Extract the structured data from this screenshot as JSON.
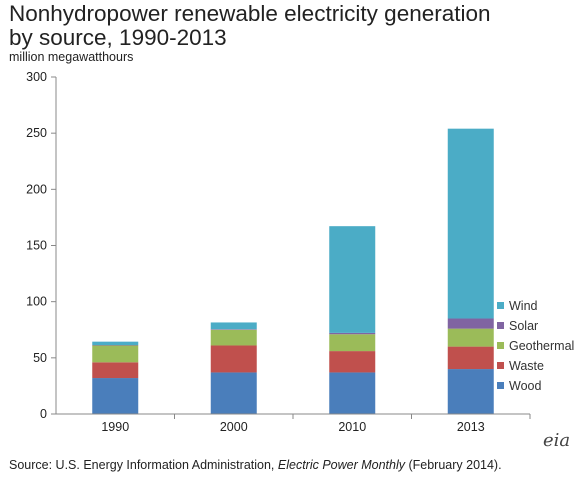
{
  "title_line1": "Nonhydropower renewable electricity generation",
  "title_line2": "by source, 1990-2013",
  "unit_label": "million megawatthours",
  "source_prefix": "Source: U.S. Energy Information Administration, ",
  "source_italic": "Electric Power Monthly",
  "source_suffix": " (February 2014).",
  "logo_text": "eia",
  "chart_data": {
    "type": "bar",
    "stacked": true,
    "categories": [
      "1990",
      "2000",
      "2010",
      "2013"
    ],
    "ylim": [
      0,
      300
    ],
    "yticks": [
      0,
      50,
      100,
      150,
      200,
      250,
      300
    ],
    "ylabel": "million megawatthours",
    "grid": false,
    "legend_position": "right",
    "series": [
      {
        "name": "Wood",
        "color": "#4a7ebb",
        "values": [
          32,
          37,
          37,
          40
        ]
      },
      {
        "name": "Waste",
        "color": "#c0504d",
        "values": [
          14,
          24,
          19,
          20
        ]
      },
      {
        "name": "Geothermal",
        "color": "#9bbb59",
        "values": [
          15,
          14,
          15,
          16
        ]
      },
      {
        "name": "Solar",
        "color": "#8064a2",
        "values": [
          0.4,
          0.5,
          1.2,
          9
        ]
      },
      {
        "name": "Wind",
        "color": "#4bacc6",
        "values": [
          3,
          6,
          95,
          169
        ]
      }
    ]
  }
}
